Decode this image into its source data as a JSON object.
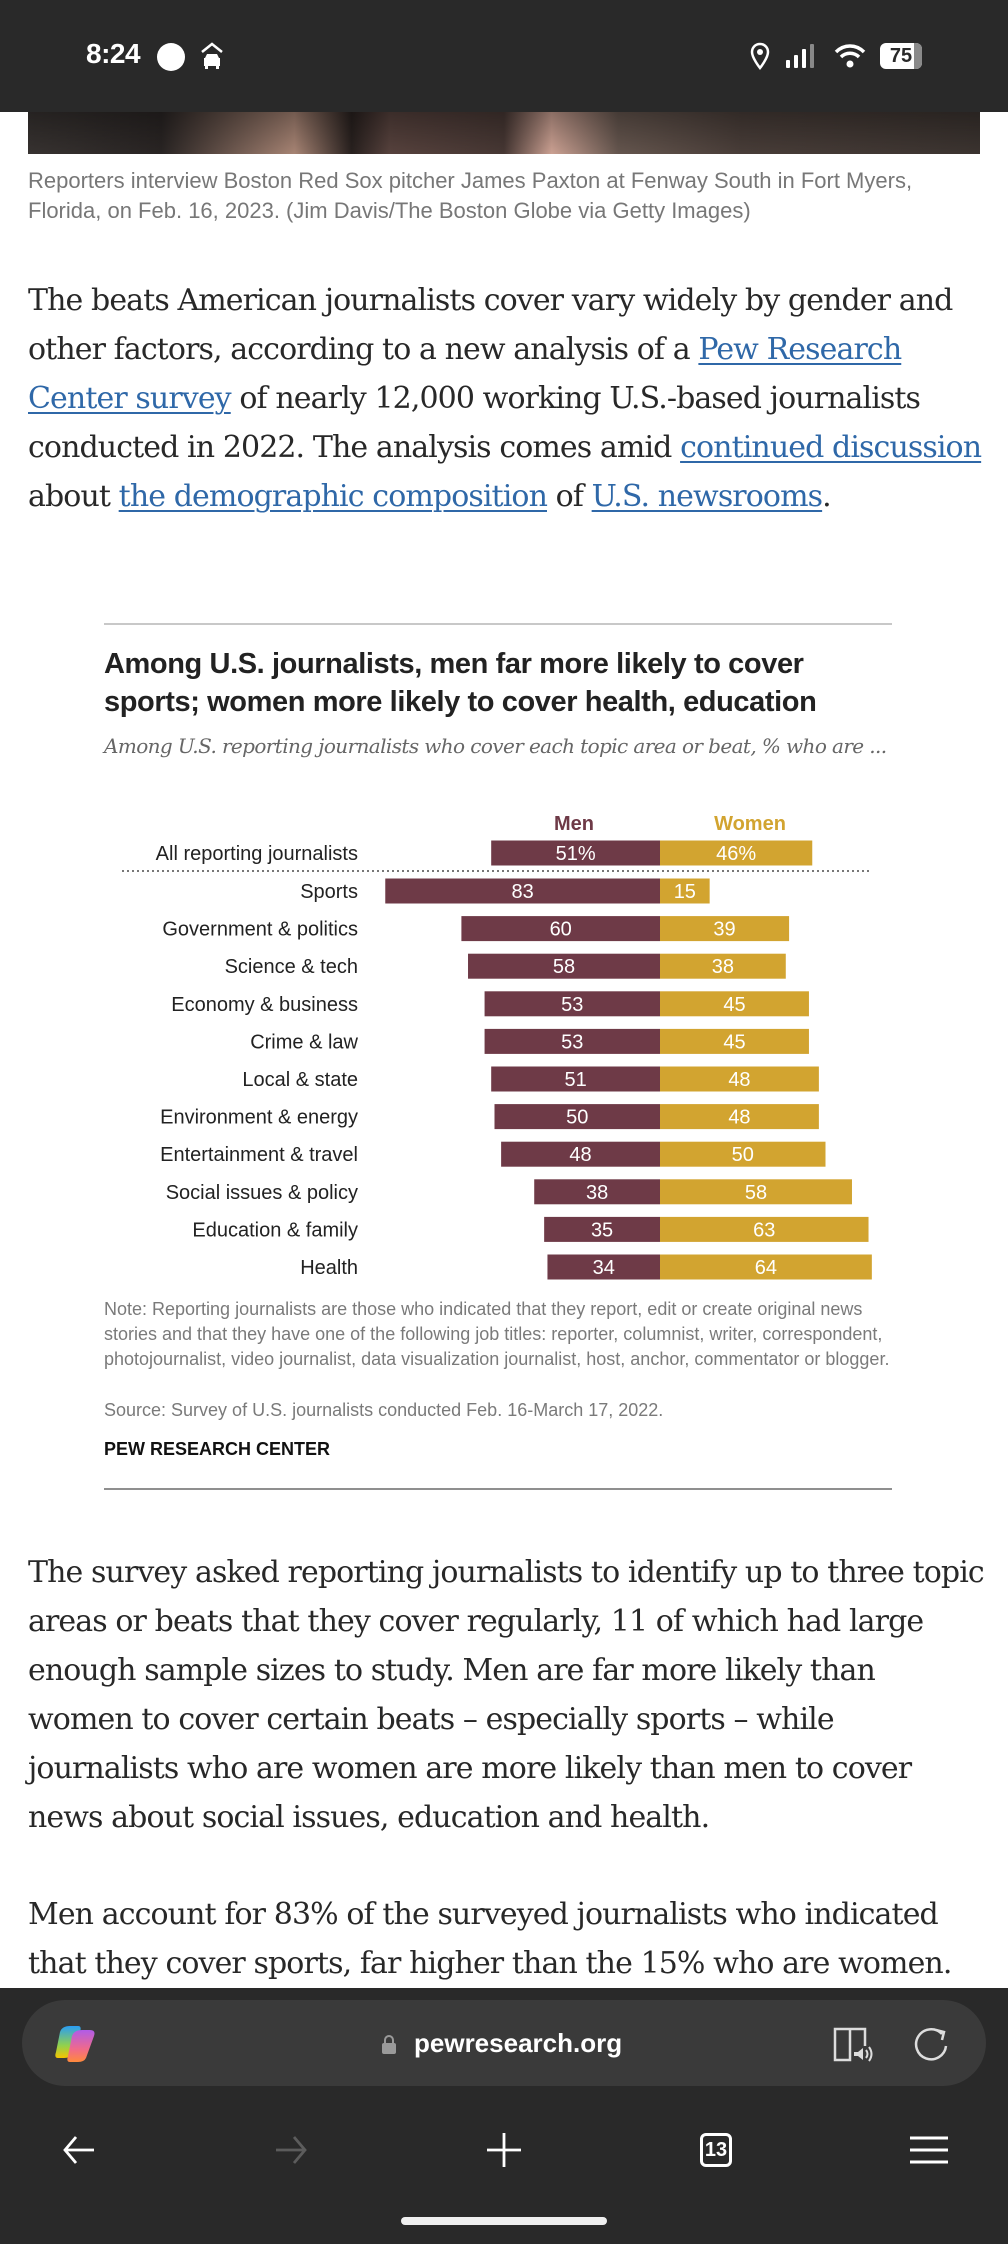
{
  "status_bar": {
    "time": "8:24",
    "battery": "75",
    "icons": [
      "circle-notification-icon",
      "car-icon",
      "location-icon",
      "signal-icon",
      "wifi-icon",
      "battery-icon"
    ]
  },
  "article": {
    "caption": "Reporters interview Boston Red Sox pitcher James Paxton at Fenway South in Fort Myers, Florida, on Feb. 16, 2023. (Jim Davis/The Boston Globe via Getty Images)",
    "para1": {
      "t1": "The beats American journalists cover vary widely by gender and other factors, according to a new analysis of a ",
      "link1": "Pew Research Center survey",
      "t2": " of nearly 12,000 working U.S.-based journalists conducted in 2022. The analysis comes amid ",
      "link2": "continued discussion",
      "t3": " about ",
      "link3": "the demographic composition",
      "t4": " of ",
      "link4": "U.S. newsrooms",
      "t5": "."
    },
    "para2": "The survey asked reporting journalists to identify up to three topic areas or beats that they cover regularly, 11 of which had large enough sample sizes to study. Men are far more likely than women to cover certain beats – especially sports – while journalists who are women are more likely than men to cover news about social issues, education and health.",
    "para3": "Men account for 83% of the surveyed journalists who indicated that they cover sports, far higher than the 15% who are women."
  },
  "chart_data": {
    "type": "bar",
    "orientation": "diverging-horizontal",
    "title": "Among U.S. journalists, men far more likely to cover sports; women more likely to cover health, education",
    "subtitle": "Among U.S. reporting journalists who cover each topic area or beat, % who are ...",
    "categories": [
      "All reporting journalists",
      "Sports",
      "Government & politics",
      "Science & tech",
      "Economy & business",
      "Crime & law",
      "Local & state",
      "Environment & energy",
      "Entertainment & travel",
      "Social issues & policy",
      "Education & family",
      "Health"
    ],
    "series": [
      {
        "name": "Men",
        "color": "#6e3a47",
        "values": [
          51,
          83,
          60,
          58,
          53,
          53,
          51,
          50,
          48,
          38,
          35,
          34
        ]
      },
      {
        "name": "Women",
        "color": "#d2a430",
        "values": [
          46,
          15,
          39,
          38,
          45,
          45,
          48,
          48,
          50,
          58,
          63,
          64
        ]
      }
    ],
    "first_row_suffix": "%",
    "separator_after_first_row": true,
    "xlim": [
      0,
      100
    ],
    "note": "Note: Reporting journalists are those who indicated that they report, edit or create original news stories and that they have one of the following job titles: reporter, columnist, writer, correspondent, photojournalist, video journalist, data visualization journalist, host, anchor, commentator or blogger.",
    "source": "Source: Survey of U.S. journalists conducted Feb. 16-March 17, 2022.",
    "brand": "PEW RESEARCH CENTER"
  },
  "browser": {
    "url": "pewresearch.org",
    "tab_count": "13",
    "nav": [
      "back-button",
      "forward-button",
      "new-tab-button",
      "tabs-button",
      "menu-button"
    ]
  }
}
